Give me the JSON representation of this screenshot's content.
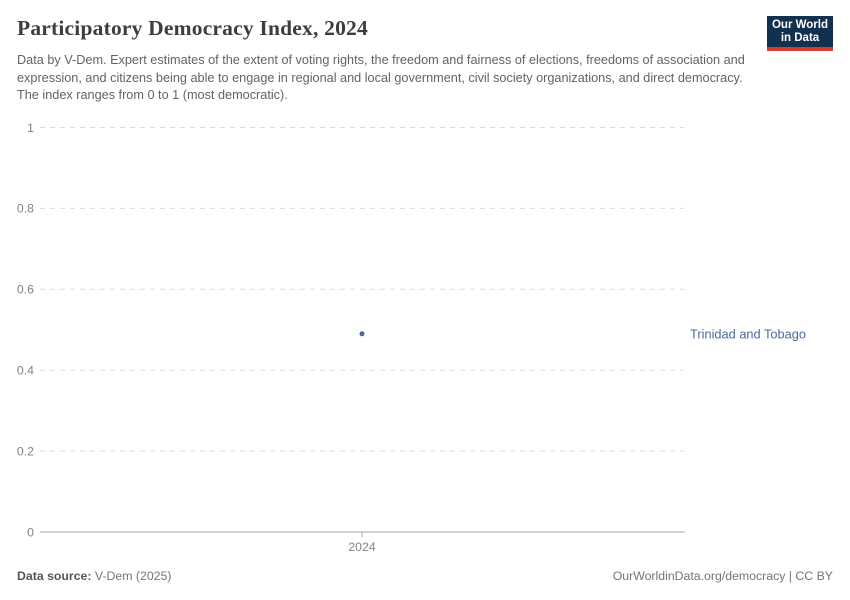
{
  "header": {
    "title": "Participatory Democracy Index, 2024",
    "subtitle": "Data by V-Dem. Expert estimates of the extent of voting rights, the freedom and fairness of elections, freedoms of association and expression, and citizens being able to engage in regional and local government, civil society organizations, and direct democracy. The index ranges from 0 to 1 (most democratic).",
    "logo_line1": "Our World",
    "logo_line2": "in Data",
    "logo_bg_color": "#12304f",
    "logo_accent_color": "#cf3d32"
  },
  "chart_data": {
    "type": "scatter",
    "title": "Participatory Democracy Index, 2024",
    "x": [
      2024
    ],
    "xticks": [
      "2024"
    ],
    "series": [
      {
        "name": "Trinidad and Tobago",
        "values": [
          0.49
        ],
        "color": "#4C6A9C"
      }
    ],
    "ylim": [
      0,
      1
    ],
    "yticks": [
      0,
      0.2,
      0.4,
      0.6,
      0.8,
      1
    ],
    "xlabel": "",
    "ylabel": "",
    "grid": "horizontal-dashed",
    "legend_position": "entity-label-right-of-plot",
    "colors": {
      "grid": "#dcdcdc",
      "axis": "#a7a7a7",
      "tick_text": "#838383"
    }
  },
  "footer": {
    "source_label": "Data source:",
    "source_value": " V-Dem (2025)",
    "right_text": "OurWorldinData.org/democracy | CC BY"
  }
}
